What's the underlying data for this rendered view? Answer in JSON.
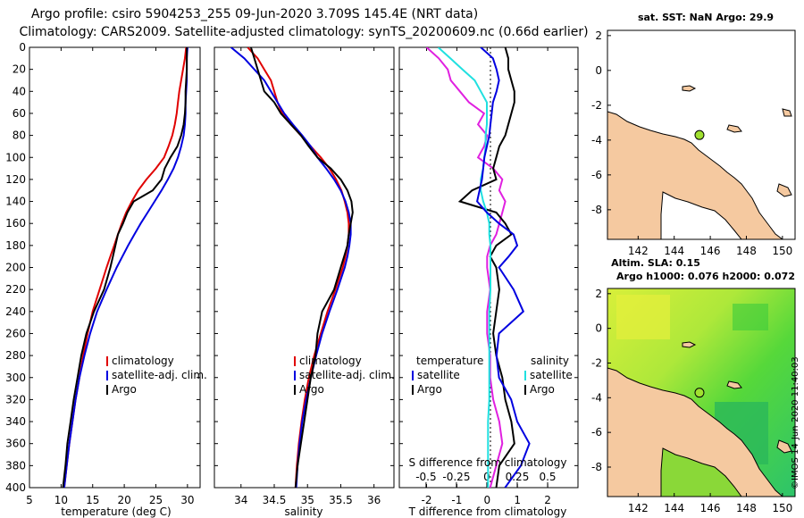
{
  "title": {
    "line1": "Argo profile: csiro 5904253_255 09-Jun-2020 3.709S 145.4E (NRT data)",
    "line2": "Climatology: CARS2009. Satellite-adjusted climatology: synTS_20200609.nc (0.66d earlier)"
  },
  "colors": {
    "climatology": "#e00000",
    "satellite": "#0000e0",
    "argo": "#000000",
    "temp_diff": "#e020e0",
    "sal_diff": "#20e0e0",
    "land": "#f5c9a0"
  },
  "depth_axis": {
    "ticks": [
      "0",
      "20",
      "40",
      "60",
      "80",
      "100",
      "120",
      "140",
      "160",
      "180",
      "200",
      "220",
      "240",
      "260",
      "280",
      "300",
      "320",
      "340",
      "360",
      "380",
      "400"
    ]
  },
  "chart_data": [
    {
      "type": "line",
      "name": "temperature-panel",
      "xlabel": "temperature (deg C)",
      "xlim": [
        5,
        32
      ],
      "ylim": [
        400,
        0
      ],
      "xticks": [
        "5",
        "10",
        "15",
        "20",
        "25",
        "30"
      ],
      "legend": [
        "climatology",
        "satellite-adj. clim.",
        "Argo"
      ],
      "depth": [
        0,
        10,
        20,
        30,
        40,
        50,
        60,
        70,
        80,
        90,
        100,
        110,
        120,
        130,
        140,
        150,
        160,
        170,
        180,
        190,
        200,
        220,
        240,
        260,
        280,
        300,
        320,
        340,
        360,
        380,
        400
      ],
      "series": [
        {
          "name": "climatology",
          "values": [
            29.8,
            29.6,
            29.3,
            29.0,
            28.7,
            28.5,
            28.3,
            28.0,
            27.6,
            27.0,
            26.3,
            25.0,
            23.5,
            22.2,
            21.2,
            20.3,
            19.6,
            19.0,
            18.4,
            17.8,
            17.2,
            16.1,
            15.0,
            14.2,
            13.5,
            12.9,
            12.3,
            11.8,
            11.3,
            10.9,
            10.5
          ]
        },
        {
          "name": "satellite-adj. clim.",
          "values": [
            30.0,
            29.9,
            29.9,
            29.9,
            29.8,
            29.7,
            29.7,
            29.6,
            29.4,
            29.0,
            28.5,
            27.8,
            26.9,
            25.9,
            24.8,
            23.7,
            22.6,
            21.6,
            20.6,
            19.7,
            18.8,
            17.2,
            15.7,
            14.6,
            13.7,
            12.9,
            12.3,
            11.8,
            11.3,
            10.9,
            10.5
          ]
        },
        {
          "name": "Argo",
          "values": [
            29.9,
            29.9,
            29.9,
            29.8,
            29.7,
            29.7,
            29.6,
            29.4,
            29.0,
            28.4,
            27.3,
            26.4,
            25.9,
            24.5,
            21.5,
            20.5,
            19.8,
            19.0,
            18.6,
            18.2,
            17.8,
            16.8,
            15.2,
            14.0,
            13.2,
            12.6,
            12.0,
            11.5,
            11.0,
            10.7,
            10.3
          ]
        }
      ]
    },
    {
      "type": "line",
      "name": "salinity-panel",
      "xlabel": "salinity",
      "xlim": [
        33.6,
        36.3
      ],
      "ylim": [
        400,
        0
      ],
      "xticks": [
        "34",
        "34.5",
        "35",
        "35.5",
        "36"
      ],
      "legend": [
        "climatology",
        "satellite-adj. clim.",
        "Argo"
      ],
      "depth": [
        0,
        10,
        20,
        30,
        40,
        50,
        60,
        70,
        80,
        90,
        100,
        110,
        120,
        130,
        140,
        150,
        160,
        170,
        180,
        190,
        200,
        220,
        240,
        260,
        280,
        300,
        320,
        340,
        360,
        380,
        400
      ],
      "series": [
        {
          "name": "climatology",
          "values": [
            34.1,
            34.25,
            34.35,
            34.45,
            34.5,
            34.55,
            34.62,
            34.75,
            34.9,
            35.05,
            35.2,
            35.33,
            35.43,
            35.51,
            35.56,
            35.6,
            35.62,
            35.62,
            35.6,
            35.57,
            35.53,
            35.42,
            35.3,
            35.2,
            35.1,
            35.02,
            34.96,
            34.91,
            34.87,
            34.84,
            34.82
          ]
        },
        {
          "name": "satellite-adj. clim.",
          "values": [
            33.85,
            34.05,
            34.2,
            34.35,
            34.45,
            34.55,
            34.65,
            34.78,
            34.92,
            35.05,
            35.15,
            35.28,
            35.4,
            35.5,
            35.57,
            35.62,
            35.65,
            35.65,
            35.63,
            35.6,
            35.56,
            35.45,
            35.33,
            35.22,
            35.13,
            35.05,
            34.98,
            34.92,
            34.88,
            34.85,
            34.83
          ]
        },
        {
          "name": "Argo",
          "values": [
            34.15,
            34.2,
            34.25,
            34.3,
            34.35,
            34.5,
            34.6,
            34.75,
            34.9,
            35.02,
            35.15,
            35.35,
            35.5,
            35.6,
            35.66,
            35.68,
            35.65,
            35.62,
            35.6,
            35.55,
            35.5,
            35.4,
            35.22,
            35.15,
            35.12,
            35.05,
            35.0,
            34.95,
            34.9,
            34.85,
            34.82
          ]
        }
      ]
    },
    {
      "type": "line",
      "name": "difference-panel",
      "xlabel": "T difference from climatology",
      "xlabel_top": "S difference from climatology",
      "xlim": [
        -2.9,
        3.0
      ],
      "s_xlim": [
        -0.72,
        0.75
      ],
      "ylim": [
        400,
        0
      ],
      "xticks": [
        "-2",
        "-1",
        "0",
        "1",
        "2"
      ],
      "s_xticks": [
        "-0.5",
        "-0.25",
        "0",
        "0.25",
        "0.5"
      ],
      "legend_left_title": "temperature",
      "legend_right_title": "salinity",
      "legend_left": [
        "satellite",
        "Argo"
      ],
      "legend_right": [
        "satellite",
        "Argo"
      ],
      "depth": [
        0,
        10,
        20,
        30,
        40,
        50,
        60,
        70,
        80,
        90,
        100,
        110,
        120,
        130,
        140,
        150,
        160,
        170,
        180,
        190,
        200,
        220,
        240,
        260,
        280,
        300,
        320,
        340,
        360,
        380,
        400
      ],
      "series": [
        {
          "name": "temperature satellite",
          "values": [
            -2.0,
            -1.6,
            -1.3,
            -1.2,
            -0.9,
            -0.6,
            -0.1,
            -0.3,
            0.0,
            -0.1,
            -0.3,
            0.2,
            0.5,
            0.4,
            0.6,
            0.5,
            0.4,
            0.3,
            0.1,
            0.0,
            0.0,
            0.1,
            0.0,
            0.0,
            0.1,
            0.1,
            0.2,
            0.4,
            0.5,
            0.3,
            0.1
          ]
        },
        {
          "name": "temperature Argo",
          "values": [
            0.6,
            0.7,
            0.7,
            0.8,
            0.9,
            0.9,
            0.8,
            0.7,
            0.6,
            0.4,
            0.3,
            0.2,
            0.3,
            -0.5,
            -0.9,
            0.3,
            0.6,
            0.8,
            0.3,
            0.1,
            0.3,
            0.4,
            0.3,
            0.2,
            0.3,
            0.5,
            0.6,
            0.8,
            0.9,
            0.4,
            0.3
          ]
        },
        {
          "name": "salinity satellite",
          "values": [
            -0.4,
            -0.3,
            -0.2,
            -0.1,
            -0.05,
            0.0,
            0.0,
            0.0,
            -0.01,
            -0.01,
            -0.02,
            -0.03,
            -0.05,
            -0.05,
            -0.03,
            0.0,
            0.02,
            0.02,
            0.03,
            0.03,
            0.03,
            0.03,
            0.02,
            0.02,
            0.02,
            0.02,
            0.02,
            0.01,
            0.01,
            0.01,
            0.01
          ]
        },
        {
          "name": "salinity Argo",
          "values": [
            -0.05,
            0.05,
            0.08,
            0.1,
            0.08,
            0.05,
            0.04,
            0.03,
            0.02,
            0.0,
            -0.02,
            -0.03,
            -0.04,
            -0.06,
            -0.08,
            0.0,
            0.1,
            0.22,
            0.25,
            0.18,
            0.1,
            0.22,
            0.3,
            0.1,
            0.08,
            0.1,
            0.2,
            0.25,
            0.35,
            0.28,
            0.15
          ]
        }
      ]
    }
  ],
  "map_top": {
    "title": "sat. SST: NaN Argo: 29.9",
    "xticks": [
      "142",
      "144",
      "146",
      "148",
      "150"
    ],
    "yticks": [
      "2",
      "0",
      "-2",
      "-4",
      "-6",
      "-8"
    ],
    "xlim": [
      140.3,
      150.7
    ],
    "ylim": [
      -9.7,
      2.3
    ],
    "argo_lon": 145.4,
    "argo_lat": -3.709
  },
  "map_bottom": {
    "title": "Altim. SLA: 0.15",
    "subtitle": "Argo h1000: 0.076 h2000: 0.072",
    "xticks": [
      "142",
      "144",
      "146",
      "148",
      "150"
    ],
    "yticks": [
      "2",
      "0",
      "-2",
      "-4",
      "-6",
      "-8"
    ],
    "xlim": [
      140.3,
      150.7
    ],
    "ylim": [
      -9.7,
      2.3
    ],
    "argo_lon": 145.4,
    "argo_lat": -3.709
  },
  "credit": "©IMOS 14-Jun-2020 11:40:03"
}
